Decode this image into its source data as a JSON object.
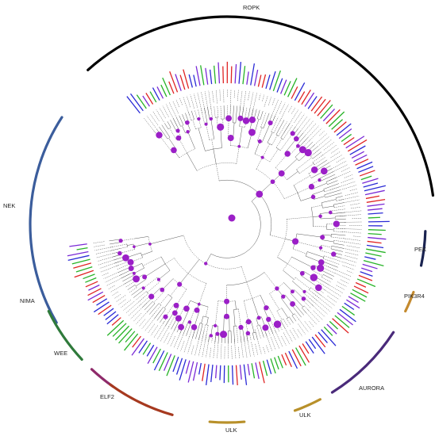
{
  "clades": [
    {
      "name": "ROPK",
      "color": "#000000"
    },
    {
      "name": "NEK",
      "color": "#3b5d9c"
    },
    {
      "name": "NIMA",
      "color": "#2f7a3b"
    },
    {
      "name": "WEE",
      "color": "#8e2a6a"
    },
    {
      "name": "ELF2",
      "color": "#a6391f"
    },
    {
      "name": "ULK",
      "color": "#b8902a"
    },
    {
      "name": "ULK",
      "color": "#b8902a"
    },
    {
      "name": "AURORA",
      "color": "#4a2a7a"
    },
    {
      "name": "PIK3R4",
      "color": "#c48a2e"
    },
    {
      "name": "PEK",
      "color": "#1a2350"
    }
  ],
  "leaf_colors": [
    "#2a2ad6",
    "#e02424",
    "#27b327",
    "#7a2ad6"
  ],
  "node_color": "#9b1fc7",
  "branch_color": "#444444"
}
